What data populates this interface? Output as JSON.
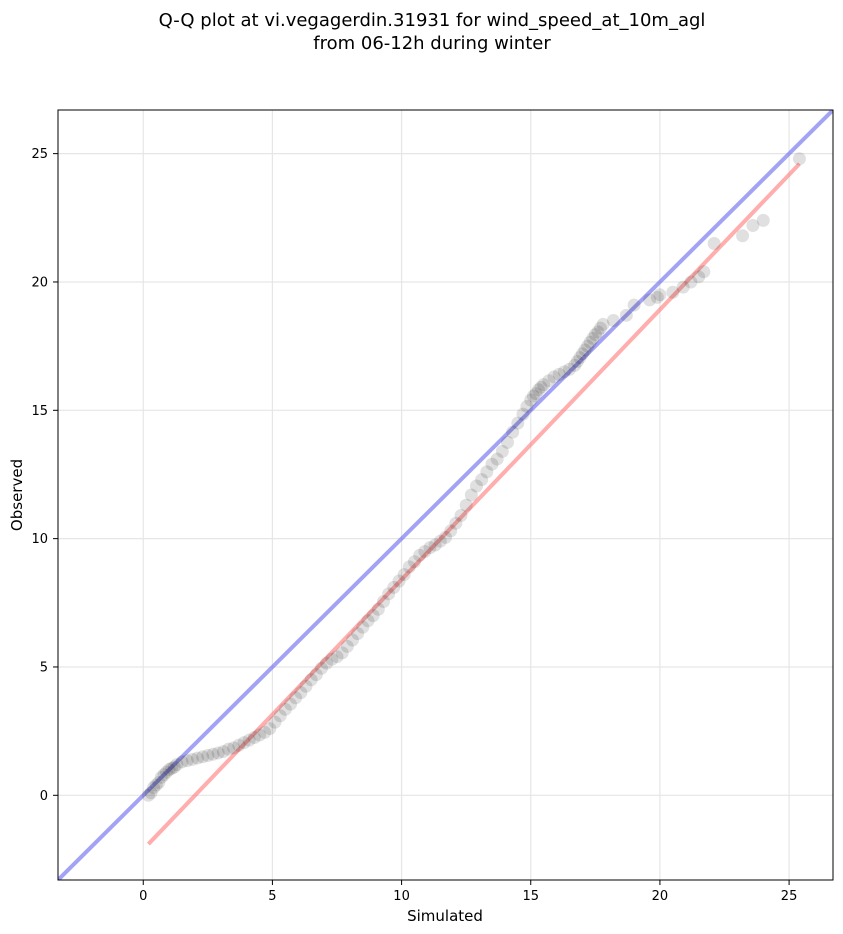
{
  "chart_data": {
    "type": "scatter",
    "title_line1": "Q-Q plot at vi.vegagerdin.31931 for wind_speed_at_10m_agl",
    "title_line2": "from 06-12h during winter",
    "xlabel": "Simulated",
    "ylabel": "Observed",
    "xlim": [
      -3.3,
      26.7
    ],
    "ylim": [
      -3.3,
      26.7
    ],
    "xticks": [
      "0",
      "5",
      "10",
      "15",
      "20",
      "25"
    ],
    "yticks": [
      "0",
      "5",
      "10",
      "15",
      "20",
      "25"
    ],
    "grid": true,
    "colors": {
      "points": "#000000",
      "identity_line": "#6666ee",
      "fit_line": "#ff7777",
      "grid": "#e6e6e6"
    },
    "identity_line": {
      "x": [
        -3.3,
        26.7
      ],
      "y": [
        -3.3,
        26.7
      ]
    },
    "fit_line": {
      "x": [
        0.2,
        25.4
      ],
      "y": [
        -1.9,
        24.6
      ]
    },
    "series": [
      {
        "x": [
          0.2,
          0.3,
          0.4,
          0.5,
          0.6,
          0.7,
          0.8,
          0.9,
          1.0,
          1.1,
          1.2,
          1.3,
          1.5,
          1.7,
          1.9,
          2.1,
          2.3,
          2.5,
          2.7,
          2.9,
          3.1,
          3.3,
          3.5,
          3.7,
          3.9,
          4.1,
          4.3,
          4.5,
          4.7,
          4.9,
          5.1,
          5.3,
          5.5,
          5.7,
          5.9,
          6.1,
          6.3,
          6.5,
          6.7,
          6.9,
          7.1,
          7.3,
          7.5,
          7.7,
          7.9,
          8.1,
          8.3,
          8.5,
          8.7,
          8.9,
          9.1,
          9.3,
          9.5,
          9.7,
          9.9,
          10.1,
          10.3,
          10.5,
          10.7,
          10.9,
          11.1,
          11.3,
          11.5,
          11.7,
          11.9,
          12.1,
          12.3,
          12.5,
          12.7,
          12.9,
          13.1,
          13.3,
          13.5,
          13.7,
          13.9,
          14.1,
          14.3,
          14.5,
          14.7,
          14.85,
          15.0,
          15.1,
          15.2,
          15.3,
          15.4,
          15.5,
          15.7,
          15.9,
          16.1,
          16.3,
          16.5,
          16.7,
          16.8,
          16.9,
          17.0,
          17.1,
          17.2,
          17.3,
          17.4,
          17.5,
          17.6,
          17.7,
          17.8,
          18.2,
          18.7,
          19.0,
          19.6,
          19.9,
          20.0,
          20.5,
          20.9,
          21.2,
          21.5,
          21.7,
          22.1,
          23.2,
          23.6,
          24.0,
          25.4
        ],
        "y": [
          0.0,
          0.1,
          0.3,
          0.4,
          0.5,
          0.7,
          0.8,
          0.9,
          1.0,
          1.05,
          1.1,
          1.2,
          1.3,
          1.35,
          1.4,
          1.45,
          1.5,
          1.55,
          1.6,
          1.65,
          1.7,
          1.8,
          1.85,
          1.95,
          2.05,
          2.15,
          2.25,
          2.35,
          2.45,
          2.6,
          2.85,
          3.1,
          3.35,
          3.55,
          3.8,
          4.0,
          4.25,
          4.5,
          4.7,
          4.95,
          5.15,
          5.3,
          5.4,
          5.55,
          5.8,
          6.05,
          6.3,
          6.55,
          6.8,
          7.0,
          7.25,
          7.55,
          7.85,
          8.1,
          8.35,
          8.6,
          8.9,
          9.1,
          9.35,
          9.5,
          9.65,
          9.75,
          9.9,
          10.05,
          10.3,
          10.6,
          10.9,
          11.3,
          11.7,
          12.05,
          12.3,
          12.6,
          12.9,
          13.1,
          13.4,
          13.75,
          14.15,
          14.5,
          14.85,
          15.15,
          15.4,
          15.55,
          15.65,
          15.8,
          15.9,
          16.0,
          16.15,
          16.3,
          16.4,
          16.5,
          16.6,
          16.75,
          16.9,
          17.05,
          17.2,
          17.35,
          17.5,
          17.65,
          17.8,
          17.95,
          18.05,
          18.2,
          18.35,
          18.5,
          18.7,
          19.1,
          19.3,
          19.4,
          19.5,
          19.6,
          19.8,
          20.0,
          20.2,
          20.4,
          21.5,
          21.8,
          22.2,
          22.4,
          24.8
        ]
      }
    ]
  }
}
